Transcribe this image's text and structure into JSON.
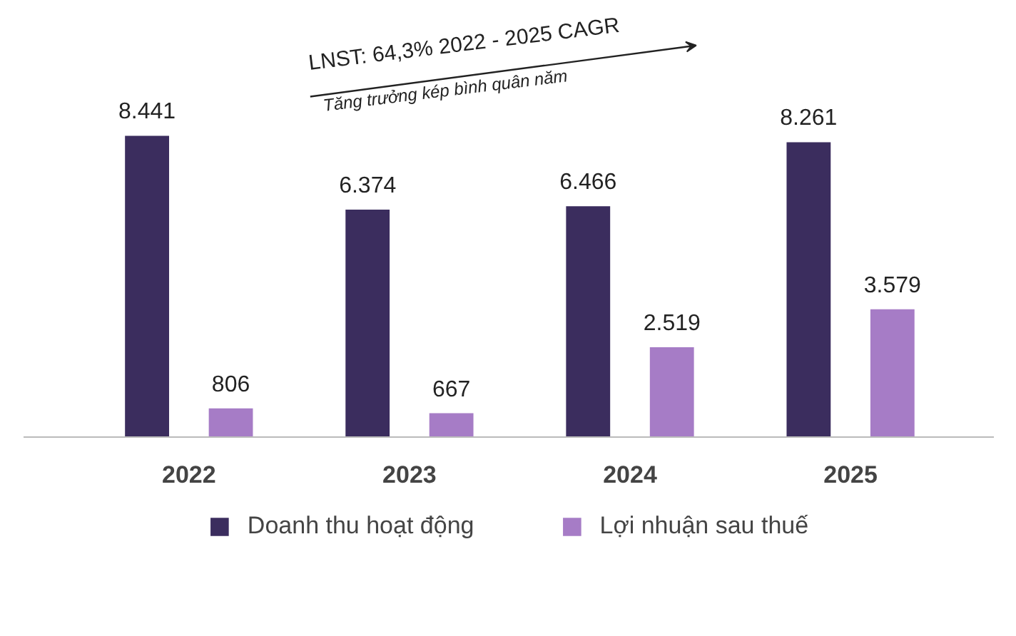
{
  "chart_data": {
    "type": "bar",
    "categories": [
      "2022",
      "2023",
      "2024",
      "2025"
    ],
    "series": [
      {
        "name": "Doanh thu hoạt động",
        "color": "#3b2d5e",
        "values": [
          8441,
          6374,
          6466,
          8261
        ],
        "value_labels": [
          "8.441",
          "6.374",
          "6.466",
          "8.261"
        ]
      },
      {
        "name": "Lợi nhuận sau thuế",
        "color": "#a67cc6",
        "values": [
          806,
          667,
          2519,
          3579
        ],
        "value_labels": [
          "806",
          "667",
          "2.519",
          "3.579"
        ]
      }
    ],
    "annotations": [
      "LNST: 64,3% 2022 - 2025 CAGR",
      "Tăng trưởng kép bình quân năm"
    ],
    "legend": "bottom"
  }
}
